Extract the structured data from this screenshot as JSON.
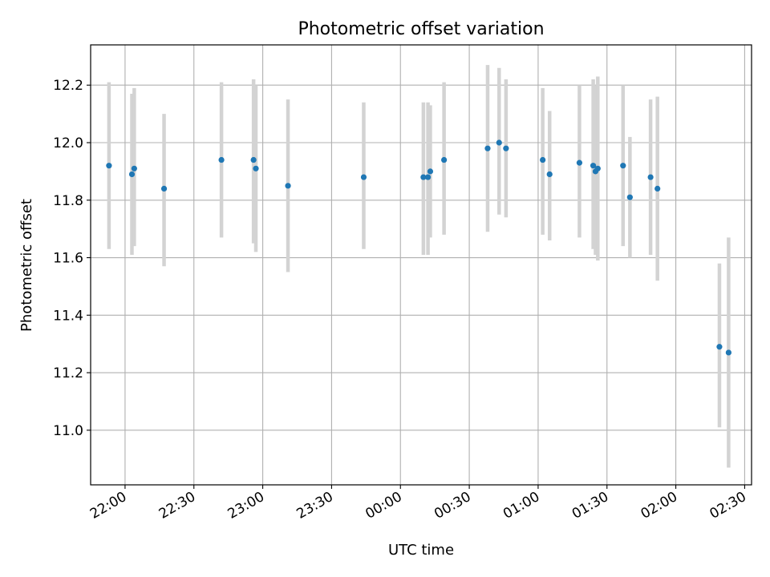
{
  "chart_data": {
    "type": "scatter",
    "title": "Photometric offset variation",
    "xlabel": "UTC time",
    "ylabel": "Photometric offset",
    "x_axis_kind": "time-of-day (UTC), spans midnight",
    "xlim": [
      "21:45",
      "02:33"
    ],
    "ylim": [
      10.81,
      12.34
    ],
    "xticks": [
      "22:00",
      "22:30",
      "23:00",
      "23:30",
      "00:00",
      "00:30",
      "01:00",
      "01:30",
      "02:00",
      "02:30"
    ],
    "yticks": [
      "11.0",
      "11.2",
      "11.4",
      "11.6",
      "11.8",
      "12.0",
      "12.2"
    ],
    "grid": true,
    "colors": {
      "point": "#1f77b4",
      "errorbar": "#d3d3d3",
      "grid": "#b0b0b0"
    },
    "points": [
      {
        "t": "21:53",
        "y": 11.92,
        "lo": 11.63,
        "hi": 12.21
      },
      {
        "t": "22:03",
        "y": 11.89,
        "lo": 11.61,
        "hi": 12.17
      },
      {
        "t": "22:04",
        "y": 11.91,
        "lo": 11.64,
        "hi": 12.19
      },
      {
        "t": "22:17",
        "y": 11.84,
        "lo": 11.57,
        "hi": 12.1
      },
      {
        "t": "22:42",
        "y": 11.94,
        "lo": 11.67,
        "hi": 12.21
      },
      {
        "t": "22:56",
        "y": 11.94,
        "lo": 11.65,
        "hi": 12.22
      },
      {
        "t": "22:57",
        "y": 11.91,
        "lo": 11.62,
        "hi": 12.2
      },
      {
        "t": "23:11",
        "y": 11.85,
        "lo": 11.55,
        "hi": 12.15
      },
      {
        "t": "23:44",
        "y": 11.88,
        "lo": 11.63,
        "hi": 12.14
      },
      {
        "t": "00:10",
        "y": 11.88,
        "lo": 11.61,
        "hi": 12.14
      },
      {
        "t": "00:12",
        "y": 11.88,
        "lo": 11.61,
        "hi": 12.14
      },
      {
        "t": "00:13",
        "y": 11.9,
        "lo": 11.67,
        "hi": 12.13
      },
      {
        "t": "00:19",
        "y": 11.94,
        "lo": 11.68,
        "hi": 12.21
      },
      {
        "t": "00:38",
        "y": 11.98,
        "lo": 11.69,
        "hi": 12.27
      },
      {
        "t": "00:43",
        "y": 12.0,
        "lo": 11.75,
        "hi": 12.26
      },
      {
        "t": "00:46",
        "y": 11.98,
        "lo": 11.74,
        "hi": 12.22
      },
      {
        "t": "01:02",
        "y": 11.94,
        "lo": 11.68,
        "hi": 12.19
      },
      {
        "t": "01:05",
        "y": 11.89,
        "lo": 11.66,
        "hi": 12.11
      },
      {
        "t": "01:18",
        "y": 11.93,
        "lo": 11.67,
        "hi": 12.2
      },
      {
        "t": "01:24",
        "y": 11.92,
        "lo": 11.63,
        "hi": 12.22
      },
      {
        "t": "01:25",
        "y": 11.9,
        "lo": 11.61,
        "hi": 12.2
      },
      {
        "t": "01:26",
        "y": 11.91,
        "lo": 11.59,
        "hi": 12.23
      },
      {
        "t": "01:37",
        "y": 11.92,
        "lo": 11.64,
        "hi": 12.2
      },
      {
        "t": "01:40",
        "y": 11.81,
        "lo": 11.6,
        "hi": 12.02
      },
      {
        "t": "01:49",
        "y": 11.88,
        "lo": 11.61,
        "hi": 12.15
      },
      {
        "t": "01:52",
        "y": 11.84,
        "lo": 11.52,
        "hi": 12.16
      },
      {
        "t": "02:19",
        "y": 11.29,
        "lo": 11.01,
        "hi": 11.58
      },
      {
        "t": "02:23",
        "y": 11.27,
        "lo": 10.87,
        "hi": 11.67
      }
    ]
  }
}
